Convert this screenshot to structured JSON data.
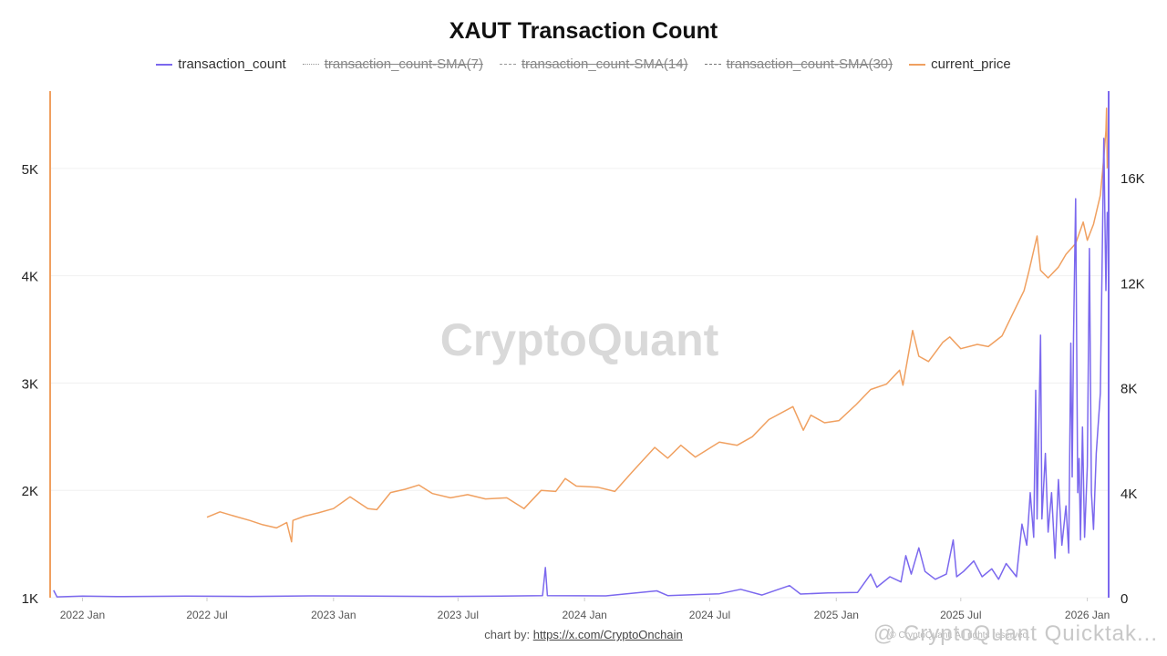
{
  "title": "XAUT Transaction Count",
  "watermark": "CryptoQuant",
  "footer": {
    "prefix": "chart by: ",
    "link": "https://x.com/CryptoOnchain"
  },
  "corner_watermark": "@ CryptoQuant Quicktak...",
  "corner_small": "© CryptoQuant. All rights reserved.",
  "legend": [
    {
      "label": "transaction_count",
      "style": "solid",
      "color": "#7b68ee",
      "enabled": true
    },
    {
      "label": "transaction_count-SMA(7)",
      "style": "dotted",
      "color": "#999999",
      "enabled": false
    },
    {
      "label": "transaction_count-SMA(14)",
      "style": "dashed",
      "color": "#999999",
      "enabled": false
    },
    {
      "label": "transaction_count-SMA(30)",
      "style": "dashdot",
      "color": "#777777",
      "enabled": false
    },
    {
      "label": "current_price",
      "style": "solid",
      "color": "#f0a060",
      "enabled": true
    }
  ],
  "chart_data": {
    "type": "line",
    "title": "XAUT Transaction Count",
    "x_range": [
      "2021-11-15",
      "2026-02-01"
    ],
    "x_ticks": [
      "2022 Jan",
      "2022 Jul",
      "2023 Jan",
      "2023 Jul",
      "2024 Jan",
      "2024 Jul",
      "2025 Jan",
      "2025 Jul",
      "2026 Jan"
    ],
    "x_tick_dates": [
      "2022-01-01",
      "2022-07-01",
      "2023-01-01",
      "2023-07-01",
      "2024-01-01",
      "2024-07-01",
      "2025-01-01",
      "2025-07-01",
      "2026-01-01"
    ],
    "left_axis": {
      "ticks": [
        "1K",
        "2K",
        "3K",
        "4K",
        "5K"
      ],
      "tick_values": [
        1000,
        2000,
        3000,
        4000,
        5000
      ],
      "range": [
        1000,
        5720
      ],
      "color": "#f0a060"
    },
    "right_axis": {
      "ticks": [
        "0",
        "4K",
        "8K",
        "12K",
        "16K"
      ],
      "tick_values": [
        0,
        4000,
        8000,
        12000,
        16000
      ],
      "range": [
        0,
        19300
      ],
      "color": "#7b68ee"
    },
    "grid": true,
    "legend_position": "top",
    "series": [
      {
        "name": "current_price",
        "axis": "left",
        "color": "#f0a060",
        "points": [
          [
            "2022-07-01",
            1750
          ],
          [
            "2022-07-20",
            1800
          ],
          [
            "2022-08-10",
            1760
          ],
          [
            "2022-09-01",
            1720
          ],
          [
            "2022-09-20",
            1680
          ],
          [
            "2022-10-10",
            1650
          ],
          [
            "2022-10-25",
            1700
          ],
          [
            "2022-11-01",
            1520
          ],
          [
            "2022-11-03",
            1720
          ],
          [
            "2022-11-20",
            1760
          ],
          [
            "2022-12-10",
            1790
          ],
          [
            "2023-01-01",
            1830
          ],
          [
            "2023-01-25",
            1940
          ],
          [
            "2023-02-20",
            1830
          ],
          [
            "2023-03-05",
            1820
          ],
          [
            "2023-03-25",
            1980
          ],
          [
            "2023-04-15",
            2010
          ],
          [
            "2023-05-05",
            2050
          ],
          [
            "2023-05-25",
            1970
          ],
          [
            "2023-06-20",
            1930
          ],
          [
            "2023-07-15",
            1960
          ],
          [
            "2023-08-10",
            1920
          ],
          [
            "2023-09-10",
            1930
          ],
          [
            "2023-10-05",
            1830
          ],
          [
            "2023-10-30",
            2000
          ],
          [
            "2023-11-20",
            1990
          ],
          [
            "2023-12-04",
            2110
          ],
          [
            "2023-12-20",
            2040
          ],
          [
            "2024-01-20",
            2030
          ],
          [
            "2024-02-14",
            1990
          ],
          [
            "2024-03-10",
            2170
          ],
          [
            "2024-04-12",
            2400
          ],
          [
            "2024-05-01",
            2300
          ],
          [
            "2024-05-20",
            2420
          ],
          [
            "2024-06-10",
            2310
          ],
          [
            "2024-07-15",
            2450
          ],
          [
            "2024-08-10",
            2420
          ],
          [
            "2024-09-01",
            2500
          ],
          [
            "2024-09-25",
            2660
          ],
          [
            "2024-10-30",
            2780
          ],
          [
            "2024-11-14",
            2560
          ],
          [
            "2024-11-25",
            2700
          ],
          [
            "2024-12-15",
            2630
          ],
          [
            "2025-01-05",
            2650
          ],
          [
            "2025-01-30",
            2800
          ],
          [
            "2025-02-20",
            2940
          ],
          [
            "2025-03-15",
            2990
          ],
          [
            "2025-04-03",
            3120
          ],
          [
            "2025-04-08",
            2980
          ],
          [
            "2025-04-22",
            3490
          ],
          [
            "2025-05-01",
            3250
          ],
          [
            "2025-05-15",
            3200
          ],
          [
            "2025-06-05",
            3380
          ],
          [
            "2025-06-15",
            3430
          ],
          [
            "2025-07-01",
            3320
          ],
          [
            "2025-07-25",
            3360
          ],
          [
            "2025-08-10",
            3340
          ],
          [
            "2025-08-30",
            3440
          ],
          [
            "2025-09-15",
            3650
          ],
          [
            "2025-10-01",
            3860
          ],
          [
            "2025-10-08",
            4040
          ],
          [
            "2025-10-20",
            4370
          ],
          [
            "2025-10-25",
            4050
          ],
          [
            "2025-11-05",
            3980
          ],
          [
            "2025-11-20",
            4080
          ],
          [
            "2025-12-01",
            4200
          ],
          [
            "2025-12-15",
            4300
          ],
          [
            "2025-12-26",
            4500
          ],
          [
            "2026-01-01",
            4330
          ],
          [
            "2026-01-10",
            4480
          ],
          [
            "2026-01-20",
            4750
          ],
          [
            "2026-01-25",
            5100
          ],
          [
            "2026-01-28",
            5350
          ],
          [
            "2026-01-29",
            5560
          ],
          [
            "2026-01-30",
            5000
          ]
        ]
      },
      {
        "name": "transaction_count",
        "axis": "right",
        "color": "#7b68ee",
        "points": [
          [
            "2021-11-20",
            280
          ],
          [
            "2021-11-25",
            30
          ],
          [
            "2022-01-01",
            60
          ],
          [
            "2022-03-01",
            40
          ],
          [
            "2022-06-01",
            60
          ],
          [
            "2022-09-01",
            50
          ],
          [
            "2022-12-01",
            70
          ],
          [
            "2023-03-01",
            60
          ],
          [
            "2023-06-01",
            50
          ],
          [
            "2023-09-01",
            60
          ],
          [
            "2023-11-01",
            80
          ],
          [
            "2023-11-05",
            1150
          ],
          [
            "2023-11-08",
            80
          ],
          [
            "2024-02-01",
            70
          ],
          [
            "2024-04-15",
            260
          ],
          [
            "2024-05-01",
            80
          ],
          [
            "2024-07-15",
            150
          ],
          [
            "2024-08-15",
            320
          ],
          [
            "2024-09-15",
            100
          ],
          [
            "2024-10-25",
            460
          ],
          [
            "2024-11-10",
            140
          ],
          [
            "2024-12-20",
            180
          ],
          [
            "2025-02-01",
            200
          ],
          [
            "2025-02-20",
            900
          ],
          [
            "2025-03-01",
            400
          ],
          [
            "2025-03-20",
            800
          ],
          [
            "2025-04-05",
            600
          ],
          [
            "2025-04-12",
            1600
          ],
          [
            "2025-04-20",
            900
          ],
          [
            "2025-05-01",
            1900
          ],
          [
            "2025-05-10",
            1000
          ],
          [
            "2025-05-25",
            700
          ],
          [
            "2025-06-10",
            900
          ],
          [
            "2025-06-20",
            2200
          ],
          [
            "2025-06-25",
            800
          ],
          [
            "2025-07-05",
            1000
          ],
          [
            "2025-07-20",
            1400
          ],
          [
            "2025-08-01",
            800
          ],
          [
            "2025-08-15",
            1100
          ],
          [
            "2025-08-25",
            700
          ],
          [
            "2025-09-05",
            1300
          ],
          [
            "2025-09-20",
            800
          ],
          [
            "2025-09-28",
            2800
          ],
          [
            "2025-10-05",
            2000
          ],
          [
            "2025-10-10",
            4000
          ],
          [
            "2025-10-15",
            2300
          ],
          [
            "2025-10-18",
            7900
          ],
          [
            "2025-10-20",
            3000
          ],
          [
            "2025-10-25",
            10000
          ],
          [
            "2025-10-27",
            3000
          ],
          [
            "2025-11-01",
            5500
          ],
          [
            "2025-11-05",
            2500
          ],
          [
            "2025-11-10",
            4000
          ],
          [
            "2025-11-15",
            1500
          ],
          [
            "2025-11-20",
            4500
          ],
          [
            "2025-11-25",
            2000
          ],
          [
            "2025-12-01",
            3500
          ],
          [
            "2025-12-05",
            1700
          ],
          [
            "2025-12-08",
            9700
          ],
          [
            "2025-12-10",
            4600
          ],
          [
            "2025-12-12",
            10000
          ],
          [
            "2025-12-15",
            15200
          ],
          [
            "2025-12-18",
            4000
          ],
          [
            "2025-12-20",
            5300
          ],
          [
            "2025-12-22",
            2200
          ],
          [
            "2025-12-25",
            6500
          ],
          [
            "2025-12-28",
            2300
          ],
          [
            "2026-01-01",
            5000
          ],
          [
            "2026-01-04",
            13300
          ],
          [
            "2026-01-07",
            4000
          ],
          [
            "2026-01-10",
            2600
          ],
          [
            "2026-01-14",
            5500
          ],
          [
            "2026-01-20",
            7800
          ],
          [
            "2026-01-25",
            17500
          ],
          [
            "2026-01-28",
            11700
          ],
          [
            "2026-01-30",
            14700
          ]
        ]
      }
    ]
  }
}
